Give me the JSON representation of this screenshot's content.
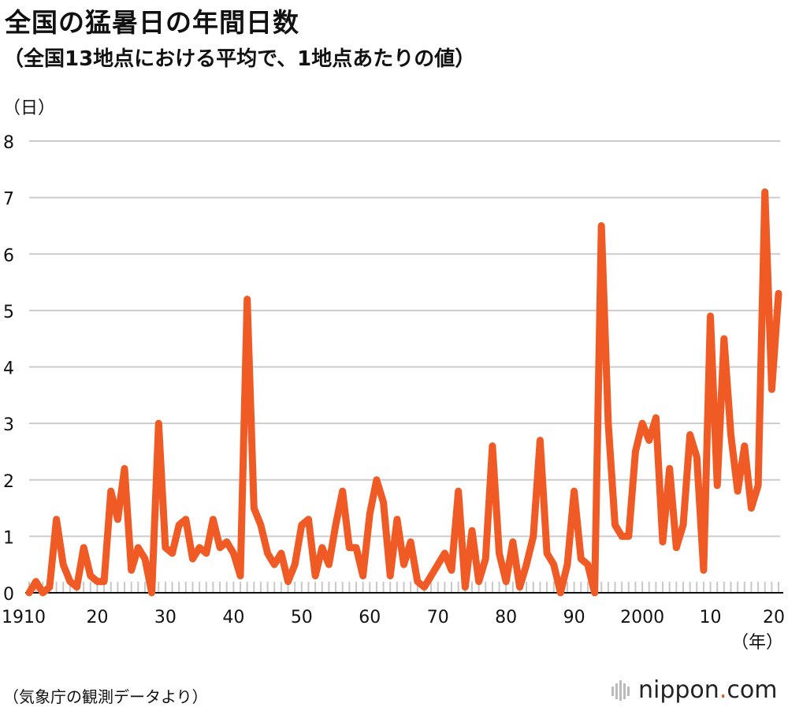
{
  "title": "全国の猛暑日の年間日数",
  "subtitle": "（全国13地点における平均で、1地点あたりの値）",
  "source": "（気象庁の観測データより）",
  "logo": {
    "name": "nippon",
    "dot": ".",
    "tld": "com"
  },
  "colors": {
    "line": "#f05a24",
    "grid": "#cccccc",
    "axis": "#111111",
    "tick": "#999999"
  },
  "chart_data": {
    "type": "line",
    "title": "全国の猛暑日の年間日数",
    "subtitle": "（全国13地点における平均で、1地点あたりの値）",
    "ylabel": "（日）",
    "xlabel": "（年）",
    "ylim": [
      0,
      8
    ],
    "yticks": [
      0,
      1,
      2,
      3,
      4,
      5,
      6,
      7,
      8
    ],
    "xlim": [
      1910,
      2020
    ],
    "xtick_values": [
      1910,
      1920,
      1930,
      1940,
      1950,
      1960,
      1970,
      1980,
      1990,
      2000,
      2010,
      2020
    ],
    "xtick_labels": [
      "1910",
      "20",
      "30",
      "40",
      "50",
      "60",
      "70",
      "80",
      "90",
      "2000",
      "10",
      "20"
    ],
    "grid": true,
    "series": [
      {
        "x": [
          1910,
          1911,
          1912,
          1913,
          1914,
          1915,
          1916,
          1917,
          1918,
          1919,
          1920,
          1921,
          1922,
          1923,
          1924,
          1925,
          1926,
          1927,
          1928,
          1929,
          1930,
          1931,
          1932,
          1933,
          1934,
          1935,
          1936,
          1937,
          1938,
          1939,
          1940,
          1941,
          1942,
          1943,
          1944,
          1945,
          1946,
          1947,
          1948,
          1949,
          1950,
          1951,
          1952,
          1953,
          1954,
          1955,
          1956,
          1957,
          1958,
          1959,
          1960,
          1961,
          1962,
          1963,
          1964,
          1965,
          1966,
          1967,
          1968,
          1969,
          1970,
          1971,
          1972,
          1973,
          1974,
          1975,
          1976,
          1977,
          1978,
          1979,
          1980,
          1981,
          1982,
          1983,
          1984,
          1985,
          1986,
          1987,
          1988,
          1989,
          1990,
          1991,
          1992,
          1993,
          1994,
          1995,
          1996,
          1997,
          1998,
          1999,
          2000,
          2001,
          2002,
          2003,
          2004,
          2005,
          2006,
          2007,
          2008,
          2009,
          2010,
          2011,
          2012,
          2013,
          2014,
          2015,
          2016,
          2017,
          2018,
          2019,
          2020
        ],
        "values": [
          0,
          0.2,
          0,
          0.1,
          1.3,
          0.5,
          0.2,
          0.1,
          0.8,
          0.3,
          0.2,
          0.2,
          1.8,
          1.3,
          2.2,
          0.4,
          0.8,
          0.6,
          0,
          3.0,
          0.8,
          0.7,
          1.2,
          1.3,
          0.6,
          0.8,
          0.7,
          1.3,
          0.8,
          0.9,
          0.7,
          0.3,
          5.2,
          1.5,
          1.2,
          0.7,
          0.5,
          0.7,
          0.2,
          0.5,
          1.2,
          1.3,
          0.3,
          0.8,
          0.5,
          1.2,
          1.8,
          0.8,
          0.8,
          0.3,
          1.4,
          2.0,
          1.6,
          0.3,
          1.3,
          0.5,
          0.9,
          0.2,
          0.1,
          0.3,
          0.5,
          0.7,
          0.4,
          1.8,
          0.1,
          1.1,
          0.2,
          0.6,
          2.6,
          0.7,
          0.2,
          0.9,
          0.1,
          0.5,
          1.0,
          2.7,
          0.7,
          0.5,
          0,
          0.5,
          1.8,
          0.6,
          0.5,
          0,
          6.5,
          3.0,
          1.2,
          1.0,
          1.0,
          2.5,
          3.0,
          2.7,
          3.1,
          0.9,
          2.2,
          0.8,
          1.2,
          2.8,
          2.4,
          0.4,
          4.9,
          1.9,
          4.5,
          2.8,
          1.8,
          2.6,
          1.5,
          1.9,
          7.1,
          3.6,
          5.3
        ]
      }
    ]
  }
}
